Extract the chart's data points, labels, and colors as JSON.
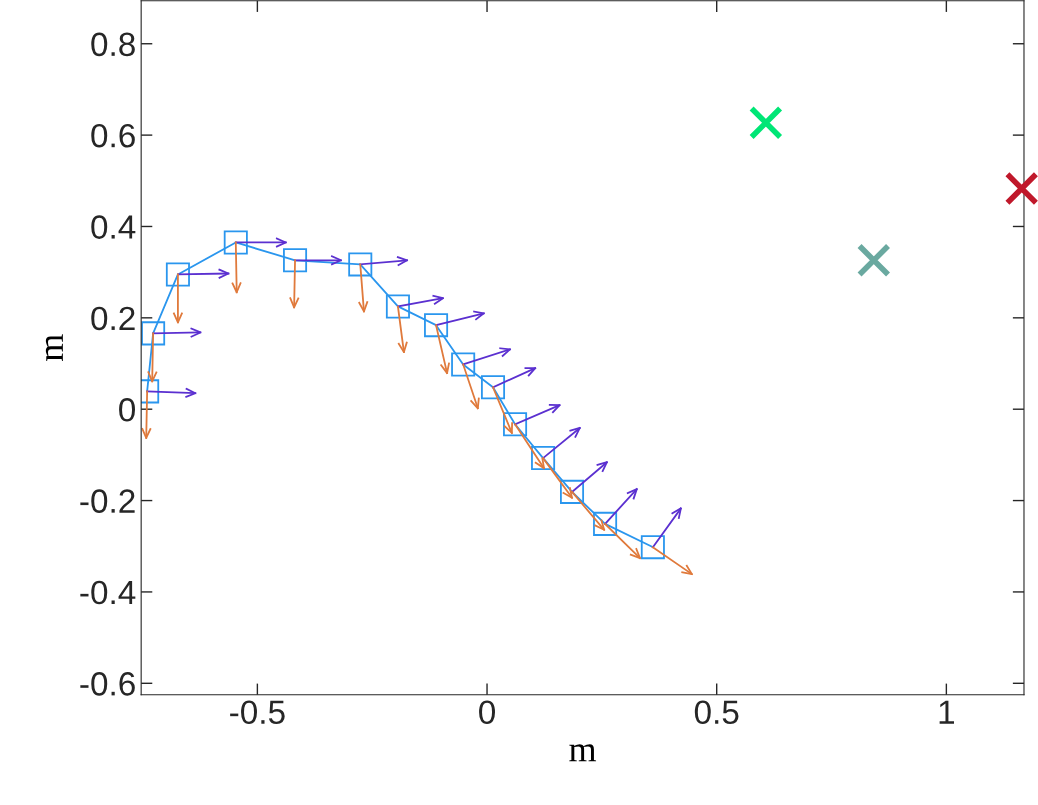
{
  "chart_data": {
    "type": "line",
    "xlabel": "m",
    "ylabel": "m",
    "xlim": [
      -0.753,
      1.169
    ],
    "ylim": [
      -0.625,
      0.894
    ],
    "xticks": [
      {
        "value": -0.5,
        "label": "-0.5"
      },
      0,
      0.5,
      1
    ],
    "yticks": [
      {
        "value": -0.6,
        "label": "-0.6"
      },
      {
        "value": -0.4,
        "label": "-0.4"
      },
      {
        "value": -0.2,
        "label": "-0.2"
      },
      0,
      0.2,
      0.4,
      0.6,
      0.8
    ],
    "grid": false,
    "legend": false,
    "series": [
      {
        "color": "#2a96ee",
        "marker": "square",
        "x": [
          -0.74,
          -0.727,
          -0.673,
          -0.547,
          -0.418,
          -0.276,
          -0.194,
          -0.111,
          -0.052,
          0.013,
          0.061,
          0.122,
          0.185,
          0.257,
          0.361
        ],
        "values": [
          0.039,
          0.166,
          0.295,
          0.365,
          0.326,
          0.317,
          0.225,
          0.184,
          0.098,
          0.048,
          -0.033,
          -0.107,
          -0.181,
          -0.251,
          -0.302
        ]
      },
      {
        "color": "#5b30d0",
        "marker": "none",
        "x": [
          -0.74,
          -0.635,
          null,
          -0.727,
          -0.624,
          null,
          -0.673,
          -0.563,
          null,
          -0.547,
          -0.438,
          null,
          -0.418,
          -0.318,
          null,
          -0.276,
          -0.174,
          null,
          -0.194,
          -0.096,
          null,
          -0.111,
          -0.007,
          null,
          -0.052,
          0.05,
          null,
          0.013,
          0.105,
          null,
          0.061,
          0.158,
          null,
          0.122,
          0.202,
          null,
          0.185,
          0.261,
          null,
          0.257,
          0.326,
          null,
          0.361,
          0.422
        ],
        "values": [
          0.039,
          0.035,
          null,
          0.166,
          0.168,
          null,
          0.295,
          0.297,
          null,
          0.365,
          0.365,
          null,
          0.326,
          0.326,
          null,
          0.317,
          0.326,
          null,
          0.225,
          0.243,
          null,
          0.184,
          0.21,
          null,
          0.098,
          0.131,
          null,
          0.048,
          0.09,
          null,
          -0.033,
          0.009,
          null,
          -0.107,
          -0.041,
          null,
          -0.181,
          -0.116,
          null,
          -0.251,
          -0.175,
          null,
          -0.302,
          -0.217
        ]
      },
      {
        "color": "#e07a3c",
        "marker": "none",
        "x": [
          -0.74,
          -0.742,
          null,
          -0.727,
          -0.729,
          null,
          -0.673,
          -0.673,
          null,
          -0.547,
          -0.545,
          null,
          -0.418,
          -0.42,
          null,
          -0.276,
          -0.268,
          null,
          -0.194,
          -0.181,
          null,
          -0.111,
          -0.087,
          null,
          -0.052,
          -0.02,
          null,
          0.013,
          0.054,
          null,
          0.061,
          0.124,
          null,
          0.122,
          0.185,
          null,
          0.185,
          0.255,
          null,
          0.257,
          0.333,
          null,
          0.361,
          0.446
        ],
        "values": [
          0.039,
          -0.063,
          null,
          0.166,
          0.061,
          null,
          0.295,
          0.19,
          null,
          0.365,
          0.256,
          null,
          0.326,
          0.223,
          null,
          0.317,
          0.214,
          null,
          0.225,
          0.125,
          null,
          0.184,
          0.079,
          null,
          0.098,
          0.002,
          null,
          0.048,
          -0.052,
          null,
          -0.033,
          -0.129,
          null,
          -0.107,
          -0.194,
          null,
          -0.181,
          -0.264,
          null,
          -0.251,
          -0.326,
          null,
          -0.302,
          -0.361
        ]
      },
      {
        "type": "scatter",
        "color": "#00e676",
        "marker": "cross",
        "x": [
          0.607
        ],
        "values": [
          0.627
        ]
      },
      {
        "type": "scatter",
        "color": "#6aa9a0",
        "marker": "cross",
        "x": [
          0.842
        ],
        "values": [
          0.326
        ]
      },
      {
        "type": "scatter",
        "color": "#c0182b",
        "marker": "cross",
        "x": [
          1.164
        ],
        "values": [
          0.483
        ]
      }
    ]
  }
}
